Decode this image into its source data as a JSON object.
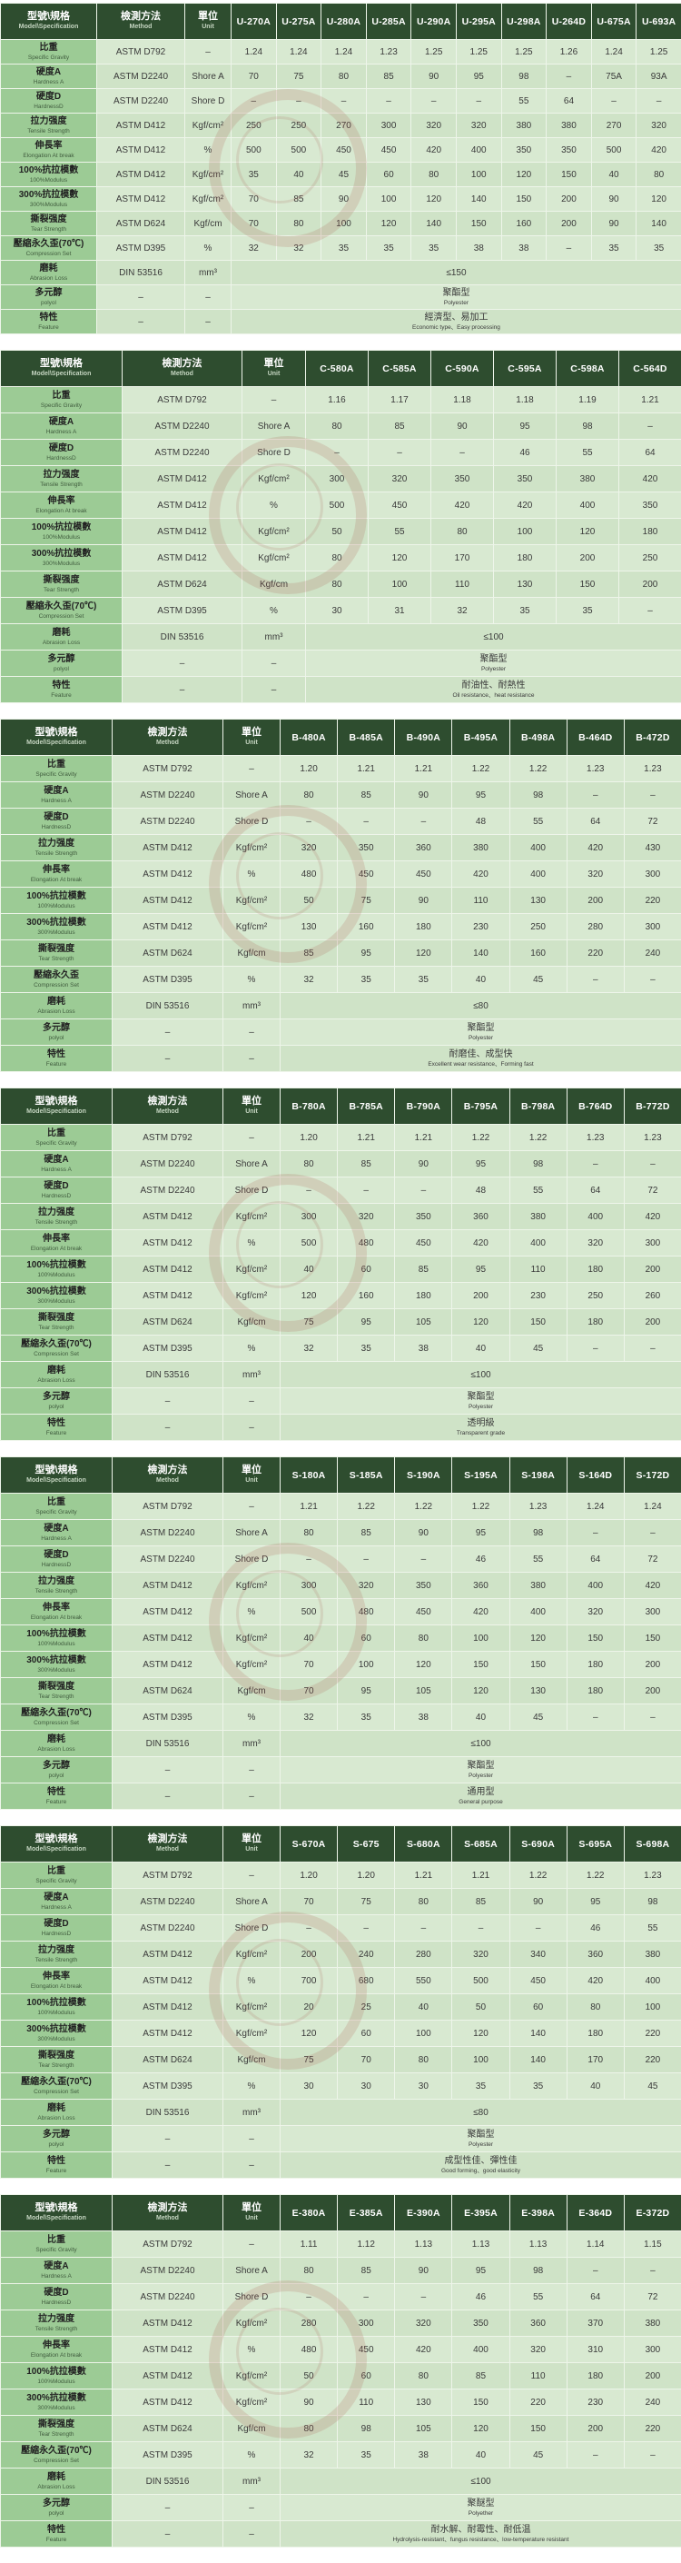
{
  "header": {
    "spec_zh": "型號\\規格",
    "spec_en": "Model\\Specification",
    "method_zh": "檢測方法",
    "method_en": "Method",
    "unit_zh": "單位",
    "unit_en": "Unit"
  },
  "row_labels": [
    {
      "key": "sg",
      "zh": "比重",
      "en": "Specific  Gravity",
      "method": "ASTM D792",
      "unit": "–"
    },
    {
      "key": "ha",
      "zh": "硬度A",
      "en": "Hardness A",
      "method": "ASTM D2240",
      "unit": "Shore A"
    },
    {
      "key": "hd",
      "zh": "硬度D",
      "en": "HardnessD",
      "method": "ASTM D2240",
      "unit": "Shore D"
    },
    {
      "key": "ts",
      "zh": "拉力强度",
      "en": "Tensile Strength",
      "method": "ASTM D412",
      "unit": "Kgf/cm²"
    },
    {
      "key": "el",
      "zh": "伸長率",
      "en": "Elongation At break",
      "method": "ASTM D412",
      "unit": "%"
    },
    {
      "key": "m100",
      "zh": "100%抗拉模數",
      "en": "100%Modulus",
      "method": "ASTM D412",
      "unit": "Kgf/cm²"
    },
    {
      "key": "m300",
      "zh": "300%抗拉模數",
      "en": "300%Modulus",
      "method": "ASTM D412",
      "unit": "Kgf/cm²"
    },
    {
      "key": "tear",
      "zh": "撕裂强度",
      "en": "Tear Strength",
      "method": "ASTM D624",
      "unit": "Kgf/cm"
    },
    {
      "key": "cs",
      "zh": "壓縮永久歪(70℃)",
      "en": "Compression Set",
      "method": "ASTM D395",
      "unit": "%"
    },
    {
      "key": "abr",
      "zh": "磨耗",
      "en": "Abrasion Loss",
      "method": "DIN 53516",
      "unit": "mm³"
    },
    {
      "key": "poly",
      "zh": "多元醇",
      "en": "polyol",
      "method": "–",
      "unit": "–"
    },
    {
      "key": "feat",
      "zh": "特性",
      "en": "Feature",
      "method": "–",
      "unit": "–"
    }
  ],
  "tables": [
    {
      "models": [
        "U-270A",
        "U-275A",
        "U-280A",
        "U-285A",
        "U-290A",
        "U-295A",
        "U-298A",
        "U-264D",
        "U-675A",
        "U-693A"
      ],
      "values": {
        "sg": [
          "1.24",
          "1.24",
          "1.24",
          "1.23",
          "1.25",
          "1.25",
          "1.25",
          "1.26",
          "1.24",
          "1.25"
        ],
        "ha": [
          "70",
          "75",
          "80",
          "85",
          "90",
          "95",
          "98",
          "–",
          "75A",
          "93A"
        ],
        "hd": [
          "–",
          "–",
          "–",
          "–",
          "–",
          "–",
          "55",
          "64",
          "–",
          "–"
        ],
        "ts": [
          "250",
          "250",
          "270",
          "300",
          "320",
          "320",
          "380",
          "380",
          "270",
          "320"
        ],
        "el": [
          "500",
          "500",
          "450",
          "450",
          "420",
          "400",
          "350",
          "350",
          "500",
          "420"
        ],
        "m100": [
          "35",
          "40",
          "45",
          "60",
          "80",
          "100",
          "120",
          "150",
          "40",
          "80"
        ],
        "m300": [
          "70",
          "85",
          "90",
          "100",
          "120",
          "140",
          "150",
          "200",
          "90",
          "120"
        ],
        "tear": [
          "70",
          "80",
          "100",
          "120",
          "140",
          "150",
          "160",
          "200",
          "90",
          "140"
        ],
        "cs": [
          "32",
          "32",
          "35",
          "35",
          "35",
          "38",
          "38",
          "–",
          "35",
          "35"
        ]
      },
      "cs_label_zh": "壓縮永久歪(70℃)",
      "abrasion": "≤150",
      "polyol_zh": "聚酯型",
      "polyol_en": "Polyester",
      "feature_zh": "經濟型、易加工",
      "feature_en": "Economic type、Easy processing"
    },
    {
      "models": [
        "C-580A",
        "C-585A",
        "C-590A",
        "C-595A",
        "C-598A",
        "C-564D"
      ],
      "values": {
        "sg": [
          "1.16",
          "1.17",
          "1.18",
          "1.18",
          "1.19",
          "1.21"
        ],
        "ha": [
          "80",
          "85",
          "90",
          "95",
          "98",
          "–"
        ],
        "hd": [
          "–",
          "–",
          "–",
          "46",
          "55",
          "64"
        ],
        "ts": [
          "300",
          "320",
          "350",
          "350",
          "380",
          "420"
        ],
        "el": [
          "500",
          "450",
          "420",
          "420",
          "400",
          "350"
        ],
        "m100": [
          "50",
          "55",
          "80",
          "100",
          "120",
          "180"
        ],
        "m300": [
          "80",
          "120",
          "170",
          "180",
          "200",
          "250"
        ],
        "tear": [
          "80",
          "100",
          "110",
          "130",
          "150",
          "200"
        ],
        "cs": [
          "30",
          "31",
          "32",
          "35",
          "35",
          "–"
        ]
      },
      "cs_label_zh": "壓縮永久歪(70℃)",
      "abrasion": "≤100",
      "polyol_zh": "聚酯型",
      "polyol_en": "Polyester",
      "feature_zh": "耐油性、耐熱性",
      "feature_en": "Oil resistance、heat resistance"
    },
    {
      "models": [
        "B-480A",
        "B-485A",
        "B-490A",
        "B-495A",
        "B-498A",
        "B-464D",
        "B-472D"
      ],
      "values": {
        "sg": [
          "1.20",
          "1.21",
          "1.21",
          "1.22",
          "1.22",
          "1.23",
          "1.23"
        ],
        "ha": [
          "80",
          "85",
          "90",
          "95",
          "98",
          "–",
          "–"
        ],
        "hd": [
          "–",
          "–",
          "–",
          "48",
          "55",
          "64",
          "72"
        ],
        "ts": [
          "320",
          "350",
          "360",
          "380",
          "400",
          "420",
          "430"
        ],
        "el": [
          "480",
          "450",
          "450",
          "420",
          "400",
          "320",
          "300"
        ],
        "m100": [
          "50",
          "75",
          "90",
          "110",
          "130",
          "200",
          "220"
        ],
        "m300": [
          "130",
          "160",
          "180",
          "230",
          "250",
          "280",
          "300"
        ],
        "tear": [
          "85",
          "95",
          "120",
          "140",
          "160",
          "220",
          "240"
        ],
        "cs": [
          "32",
          "35",
          "35",
          "40",
          "45",
          "–",
          "–"
        ]
      },
      "cs_label_zh": "壓縮永久歪",
      "abrasion": "≤80",
      "polyol_zh": "聚酯型",
      "polyol_en": "Polyester",
      "feature_zh": "耐磨佳、成型快",
      "feature_en": "Excellent wear resistance、Forming fast"
    },
    {
      "models": [
        "B-780A",
        "B-785A",
        "B-790A",
        "B-795A",
        "B-798A",
        "B-764D",
        "B-772D"
      ],
      "values": {
        "sg": [
          "1.20",
          "1.21",
          "1.21",
          "1.22",
          "1.22",
          "1.23",
          "1.23"
        ],
        "ha": [
          "80",
          "85",
          "90",
          "95",
          "98",
          "–",
          "–"
        ],
        "hd": [
          "–",
          "–",
          "–",
          "48",
          "55",
          "64",
          "72"
        ],
        "ts": [
          "300",
          "320",
          "350",
          "360",
          "380",
          "400",
          "420"
        ],
        "el": [
          "500",
          "480",
          "450",
          "420",
          "400",
          "320",
          "300"
        ],
        "m100": [
          "40",
          "60",
          "85",
          "95",
          "110",
          "180",
          "200"
        ],
        "m300": [
          "120",
          "160",
          "180",
          "200",
          "230",
          "250",
          "260"
        ],
        "tear": [
          "75",
          "95",
          "105",
          "120",
          "150",
          "180",
          "200"
        ],
        "cs": [
          "32",
          "35",
          "38",
          "40",
          "45",
          "–",
          "–"
        ]
      },
      "cs_label_zh": "壓縮永久歪(70℃)",
      "abrasion": "≤100",
      "polyol_zh": "聚酯型",
      "polyol_en": "Polyester",
      "feature_zh": "透明級",
      "feature_en": "Transparent grade"
    },
    {
      "models": [
        "S-180A",
        "S-185A",
        "S-190A",
        "S-195A",
        "S-198A",
        "S-164D",
        "S-172D"
      ],
      "values": {
        "sg": [
          "1.21",
          "1.22",
          "1.22",
          "1.22",
          "1.23",
          "1.24",
          "1.24"
        ],
        "ha": [
          "80",
          "85",
          "90",
          "95",
          "98",
          "–",
          "–"
        ],
        "hd": [
          "–",
          "–",
          "–",
          "46",
          "55",
          "64",
          "72"
        ],
        "ts": [
          "300",
          "320",
          "350",
          "360",
          "380",
          "400",
          "420"
        ],
        "el": [
          "500",
          "480",
          "450",
          "420",
          "400",
          "320",
          "300"
        ],
        "m100": [
          "40",
          "60",
          "80",
          "100",
          "120",
          "150",
          "150"
        ],
        "m300": [
          "70",
          "100",
          "120",
          "150",
          "150",
          "180",
          "200"
        ],
        "tear": [
          "70",
          "95",
          "105",
          "120",
          "130",
          "180",
          "200"
        ],
        "cs": [
          "32",
          "35",
          "38",
          "40",
          "45",
          "–",
          "–"
        ]
      },
      "cs_label_zh": "壓縮永久歪(70℃)",
      "abrasion": "≤100",
      "polyol_zh": "聚酯型",
      "polyol_en": "Polyester",
      "feature_zh": "通用型",
      "feature_en": "General purpose"
    },
    {
      "models": [
        "S-670A",
        "S-675",
        "S-680A",
        "S-685A",
        "S-690A",
        "S-695A",
        "S-698A"
      ],
      "values": {
        "sg": [
          "1.20",
          "1.20",
          "1.21",
          "1.21",
          "1.22",
          "1.22",
          "1.23"
        ],
        "ha": [
          "70",
          "75",
          "80",
          "85",
          "90",
          "95",
          "98"
        ],
        "hd": [
          "–",
          "–",
          "–",
          "–",
          "–",
          "46",
          "55"
        ],
        "ts": [
          "200",
          "240",
          "280",
          "320",
          "340",
          "360",
          "380"
        ],
        "el": [
          "700",
          "680",
          "550",
          "500",
          "450",
          "420",
          "400"
        ],
        "m100": [
          "20",
          "25",
          "40",
          "50",
          "60",
          "80",
          "100"
        ],
        "m300": [
          "120",
          "60",
          "100",
          "120",
          "140",
          "180",
          "220"
        ],
        "tear": [
          "75",
          "70",
          "80",
          "100",
          "140",
          "170",
          "220"
        ],
        "cs": [
          "30",
          "30",
          "30",
          "35",
          "35",
          "40",
          "45"
        ]
      },
      "cs_label_zh": "壓縮永久歪(70℃)",
      "abrasion": "≤80",
      "polyol_zh": "聚酯型",
      "polyol_en": "Polyester",
      "feature_zh": "成型性佳、彈性佳",
      "feature_en": "Good forming、good elasticity"
    },
    {
      "models": [
        "E-380A",
        "E-385A",
        "E-390A",
        "E-395A",
        "E-398A",
        "E-364D",
        "E-372D"
      ],
      "values": {
        "sg": [
          "1.11",
          "1.12",
          "1.13",
          "1.13",
          "1.13",
          "1.14",
          "1.15"
        ],
        "ha": [
          "80",
          "85",
          "90",
          "95",
          "98",
          "–",
          "–"
        ],
        "hd": [
          "–",
          "–",
          "–",
          "46",
          "55",
          "64",
          "72"
        ],
        "ts": [
          "280",
          "300",
          "320",
          "350",
          "360",
          "370",
          "380"
        ],
        "el": [
          "480",
          "450",
          "420",
          "400",
          "320",
          "310",
          "300"
        ],
        "m100": [
          "50",
          "60",
          "80",
          "85",
          "110",
          "180",
          "200"
        ],
        "m300": [
          "90",
          "110",
          "130",
          "150",
          "220",
          "230",
          "240"
        ],
        "tear": [
          "80",
          "98",
          "105",
          "120",
          "150",
          "200",
          "220"
        ],
        "cs": [
          "32",
          "35",
          "38",
          "40",
          "45",
          "–",
          "–"
        ]
      },
      "cs_label_zh": "壓縮永久歪(70℃)",
      "abrasion": "≤100",
      "polyol_zh": "聚醚型",
      "polyol_en": "Polyether",
      "feature_zh": "耐水解、耐霉性、耐低温",
      "feature_en": "Hydrolysis-resistant、fungus resistance、low-temperature resistant"
    }
  ],
  "colors": {
    "header": "#2e4d2f",
    "label_col": "#9ccb95",
    "body": "#cfe3c7"
  },
  "watermark": {
    "text": "WWW.DGPENGXU.COM"
  }
}
